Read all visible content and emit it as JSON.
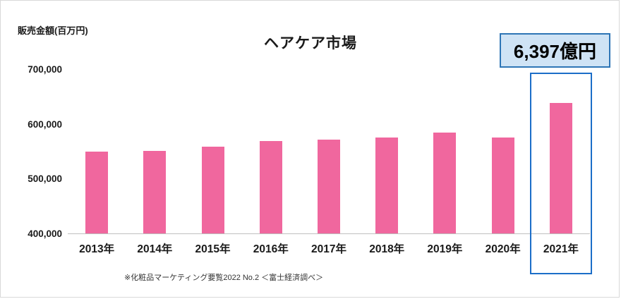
{
  "page": {
    "y_axis_title": "販売金額(百万円)",
    "title": "ヘアケア市場",
    "annotation_label": "6,397億円",
    "footnote": "※化粧品マーケティング要覧2022 No.2 ＜富士経済調べ＞"
  },
  "chart_data": {
    "type": "bar",
    "title": "ヘアケア市場",
    "ylabel": "販売金額(百万円)",
    "categories": [
      "2013年",
      "2014年",
      "2015年",
      "2016年",
      "2017年",
      "2018年",
      "2019年",
      "2020年",
      "2021年"
    ],
    "values": [
      550000,
      552000,
      560000,
      570000,
      572000,
      576000,
      585000,
      576000,
      639700
    ],
    "ylim": [
      400000,
      700000
    ],
    "yticks": [
      700000,
      600000,
      500000,
      400000
    ],
    "ytick_labels": [
      "700,000",
      "600,000",
      "500,000",
      "400,000"
    ],
    "grid": false,
    "legend": false,
    "bar_color": "#f0679e",
    "highlight_index": 8,
    "highlight_border_color": "#1c6ec8",
    "annotation": {
      "text": "6,397億円",
      "background": "#cfe3f5",
      "border": "#2e75b6"
    }
  }
}
